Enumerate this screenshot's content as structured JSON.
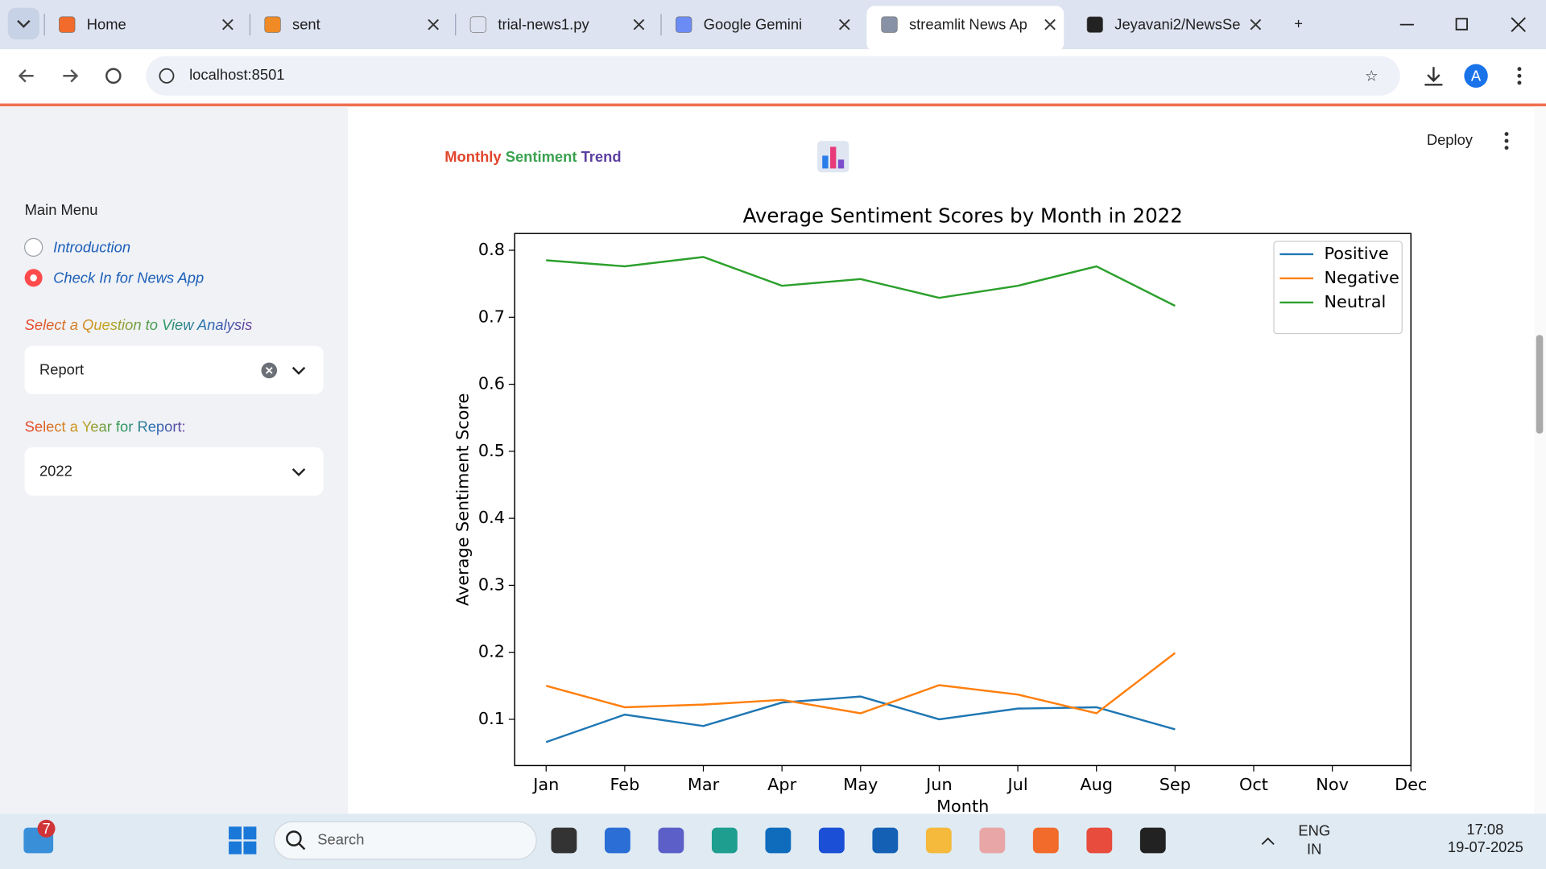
{
  "browser": {
    "tabs": [
      "Home",
      "sent",
      "trial-news1.py",
      "Google Gemini",
      "streamlit News Ap",
      "Jeyavani2/NewsSe"
    ],
    "url": "localhost:8501",
    "profile": "A"
  },
  "app": {
    "deploy": "Deploy",
    "heading": [
      "Monthly",
      "Sentiment",
      "Trend"
    ]
  },
  "sidebar": {
    "menu_label": "Main Menu",
    "options": [
      "Introduction",
      "Check In for News App"
    ],
    "question_label": "Select a Question to View Analysis",
    "question_value": "Report",
    "year_label": "Select a Year for Report:",
    "year_value": "2022"
  },
  "taskbar": {
    "badge": "7",
    "search": "Search",
    "lang": "ENG",
    "region": "IN",
    "time": "17:08",
    "date": "19-07-2025"
  },
  "chart_data": {
    "type": "line",
    "title": "Average Sentiment Scores by Month in 2022",
    "xlabel": "Month",
    "ylabel": "Average Sentiment Score",
    "categories": [
      "Jan",
      "Feb",
      "Mar",
      "Apr",
      "May",
      "Jun",
      "Jul",
      "Aug",
      "Sep",
      "Oct",
      "Nov",
      "Dec"
    ],
    "series": [
      {
        "name": "Positive",
        "color": "#1f77b4",
        "values": [
          0.066,
          0.107,
          0.09,
          0.125,
          0.134,
          0.1,
          0.116,
          0.118,
          0.085,
          null,
          null,
          null
        ]
      },
      {
        "name": "Negative",
        "color": "#ff7f0e",
        "values": [
          0.15,
          0.118,
          0.122,
          0.129,
          0.109,
          0.151,
          0.137,
          0.109,
          0.199,
          null,
          null,
          null
        ]
      },
      {
        "name": "Neutral",
        "color": "#2ca02c",
        "values": [
          0.785,
          0.776,
          0.79,
          0.747,
          0.757,
          0.729,
          0.747,
          0.776,
          0.717,
          null,
          null,
          null
        ]
      }
    ],
    "ylim": [
      0.031,
      0.825
    ],
    "yticks": [
      0.1,
      0.2,
      0.3,
      0.4,
      0.5,
      0.6,
      0.7,
      0.8
    ],
    "grid": false,
    "legend": "upper right"
  }
}
